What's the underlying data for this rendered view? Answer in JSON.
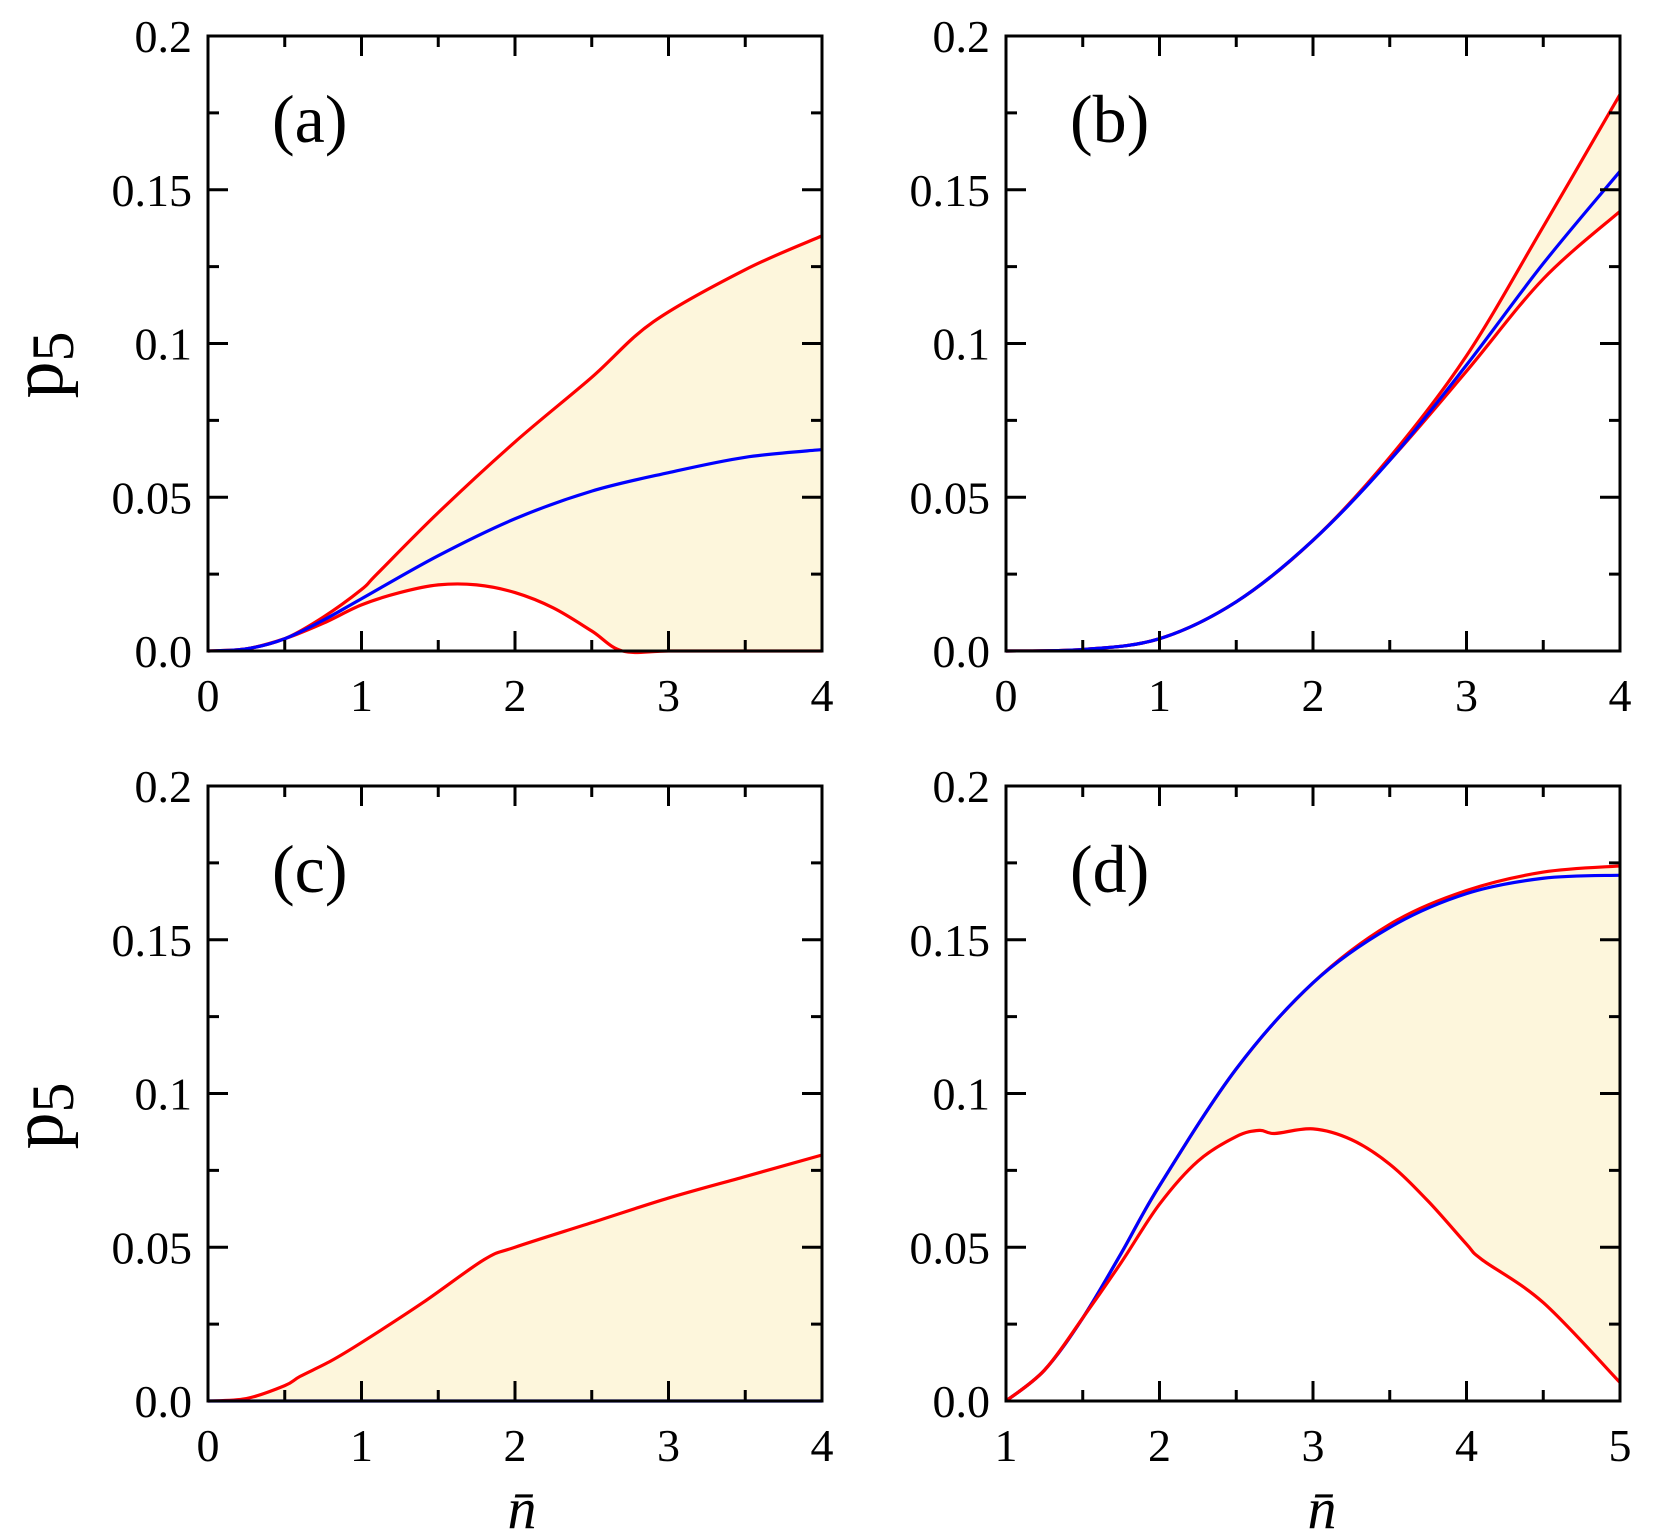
{
  "figure": {
    "ylabel_top": "p",
    "ylabel_top_sub": "5",
    "ylabel_bottom": "p",
    "ylabel_bottom_sub": "5",
    "xlabel_left": "n̄",
    "xlabel_right": "n̄"
  },
  "colors": {
    "red": "#ff0000",
    "blue": "#0000ff",
    "fill": "#fdf6dc",
    "axis": "#000000"
  },
  "chart_data": [
    {
      "id": "a",
      "type": "line",
      "panel_label": "(a)",
      "xlim": [
        0,
        4
      ],
      "ylim": [
        0,
        0.2
      ],
      "xticks": [
        0,
        1,
        2,
        3,
        4
      ],
      "xtick_labels": [
        "0",
        "1",
        "2",
        "3",
        "4"
      ],
      "yticks": [
        0,
        0.05,
        0.1,
        0.15,
        0.2
      ],
      "ytick_labels": [
        "0.0",
        "0.05",
        "0.1",
        "0.15",
        "0.2"
      ],
      "shaded_between": [
        "upper",
        "lower"
      ],
      "series": [
        {
          "key": "upper",
          "color": "red",
          "x": [
            0,
            0.25,
            0.5,
            0.75,
            1.0,
            1.1,
            1.5,
            2.0,
            2.5,
            2.9,
            3.5,
            4.0
          ],
          "y": [
            0,
            0.0007,
            0.004,
            0.011,
            0.02,
            0.025,
            0.045,
            0.068,
            0.089,
            0.107,
            0.124,
            0.135
          ]
        },
        {
          "key": "lower",
          "color": "red",
          "x": [
            0,
            0.25,
            0.5,
            0.75,
            1.0,
            1.25,
            1.5,
            1.75,
            2.0,
            2.25,
            2.5,
            2.7,
            3.0,
            3.5,
            4.0
          ],
          "y": [
            0,
            0.0007,
            0.004,
            0.009,
            0.015,
            0.019,
            0.0215,
            0.0215,
            0.019,
            0.014,
            0.0065,
            0.0,
            0.0,
            0.0,
            0.0
          ]
        },
        {
          "key": "middle",
          "color": "blue",
          "x": [
            0,
            0.25,
            0.5,
            0.75,
            1.0,
            1.5,
            2.0,
            2.5,
            3.0,
            3.5,
            4.0
          ],
          "y": [
            0,
            0.0007,
            0.004,
            0.01,
            0.017,
            0.031,
            0.043,
            0.052,
            0.058,
            0.063,
            0.0655
          ]
        }
      ]
    },
    {
      "id": "b",
      "type": "line",
      "panel_label": "(b)",
      "xlim": [
        0,
        4
      ],
      "ylim": [
        0,
        0.2
      ],
      "xticks": [
        0,
        1,
        2,
        3,
        4
      ],
      "xtick_labels": [
        "0",
        "1",
        "2",
        "3",
        "4"
      ],
      "yticks": [
        0,
        0.05,
        0.1,
        0.15,
        0.2
      ],
      "ytick_labels": [
        "0.0",
        "0.05",
        "0.1",
        "0.15",
        "0.2"
      ],
      "shaded_between": [
        "upper",
        "lower"
      ],
      "series": [
        {
          "key": "upper",
          "color": "red",
          "x": [
            0,
            0.5,
            1.0,
            1.5,
            2.0,
            2.5,
            3.0,
            3.5,
            4.0
          ],
          "y": [
            0,
            0.0005,
            0.004,
            0.016,
            0.036,
            0.063,
            0.096,
            0.138,
            0.181
          ]
        },
        {
          "key": "lower",
          "color": "red",
          "x": [
            0,
            0.5,
            1.0,
            1.5,
            2.0,
            2.5,
            3.0,
            3.5,
            4.0
          ],
          "y": [
            0,
            0.0005,
            0.004,
            0.016,
            0.036,
            0.062,
            0.091,
            0.121,
            0.143
          ]
        },
        {
          "key": "middle",
          "color": "blue",
          "x": [
            0,
            0.5,
            1.0,
            1.5,
            2.0,
            2.5,
            3.0,
            3.5,
            4.0
          ],
          "y": [
            0,
            0.0005,
            0.004,
            0.016,
            0.036,
            0.062,
            0.093,
            0.126,
            0.156
          ]
        }
      ]
    },
    {
      "id": "c",
      "type": "line",
      "panel_label": "(c)",
      "xlim": [
        0,
        4
      ],
      "ylim": [
        0,
        0.2
      ],
      "xticks": [
        0,
        1,
        2,
        3,
        4
      ],
      "xtick_labels": [
        "0",
        "1",
        "2",
        "3",
        "4"
      ],
      "yticks": [
        0,
        0.05,
        0.1,
        0.15,
        0.2
      ],
      "ytick_labels": [
        "0.0",
        "0.05",
        "0.1",
        "0.15",
        "0.2"
      ],
      "shaded_between": [
        "upper",
        "lower"
      ],
      "series": [
        {
          "key": "upper",
          "color": "red",
          "x": [
            0,
            0.25,
            0.5,
            0.6,
            0.8,
            1.0,
            1.4,
            1.8,
            2.0,
            2.5,
            3.0,
            3.5,
            4.0
          ],
          "y": [
            0,
            0.0008,
            0.005,
            0.008,
            0.013,
            0.019,
            0.032,
            0.046,
            0.05,
            0.058,
            0.066,
            0.073,
            0.08
          ]
        },
        {
          "key": "lower",
          "color": "blue",
          "x": [
            0,
            4.0
          ],
          "y": [
            0,
            0
          ]
        }
      ]
    },
    {
      "id": "d",
      "type": "line",
      "panel_label": "(d)",
      "xlim": [
        1,
        5
      ],
      "ylim": [
        0,
        0.2
      ],
      "xticks": [
        1,
        2,
        3,
        4,
        5
      ],
      "xtick_labels": [
        "1",
        "2",
        "3",
        "4",
        "5"
      ],
      "yticks": [
        0,
        0.05,
        0.1,
        0.15,
        0.2
      ],
      "ytick_labels": [
        "0.0",
        "0.05",
        "0.1",
        "0.15",
        "0.2"
      ],
      "shaded_between": [
        "upper",
        "lower"
      ],
      "series": [
        {
          "key": "upper",
          "color": "red",
          "x": [
            1.0,
            1.25,
            1.5,
            1.75,
            2.0,
            2.5,
            3.0,
            3.5,
            4.0,
            4.5,
            5.0
          ],
          "y": [
            0,
            0.01,
            0.027,
            0.048,
            0.07,
            0.108,
            0.136,
            0.155,
            0.166,
            0.172,
            0.174
          ]
        },
        {
          "key": "middle",
          "color": "blue",
          "x": [
            1.0,
            1.25,
            1.5,
            1.75,
            2.0,
            2.5,
            3.0,
            3.5,
            4.0,
            4.5,
            5.0
          ],
          "y": [
            0,
            0.01,
            0.027,
            0.048,
            0.07,
            0.108,
            0.136,
            0.154,
            0.165,
            0.17,
            0.171
          ]
        },
        {
          "key": "lower",
          "color": "red",
          "x": [
            1.0,
            1.25,
            1.5,
            1.75,
            2.0,
            2.25,
            2.5,
            2.65,
            2.75,
            3.0,
            3.25,
            3.5,
            3.75,
            4.0,
            4.1,
            4.5,
            5.0
          ],
          "y": [
            0,
            0.01,
            0.027,
            0.045,
            0.064,
            0.078,
            0.086,
            0.088,
            0.087,
            0.0885,
            0.085,
            0.077,
            0.065,
            0.051,
            0.046,
            0.032,
            0.006
          ]
        }
      ]
    }
  ]
}
